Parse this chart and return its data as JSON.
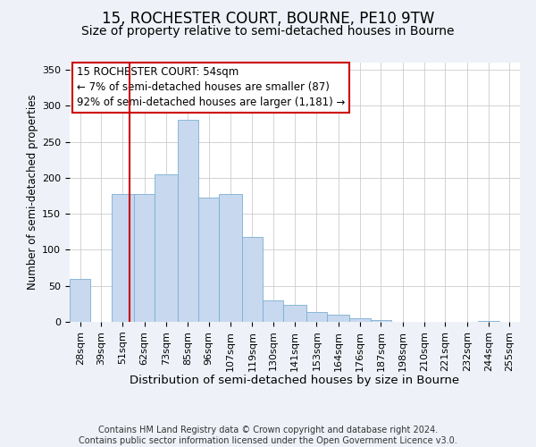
{
  "title": "15, ROCHESTER COURT, BOURNE, PE10 9TW",
  "subtitle": "Size of property relative to semi-detached houses in Bourne",
  "xlabel": "Distribution of semi-detached houses by size in Bourne",
  "ylabel": "Number of semi-detached properties",
  "footer_line1": "Contains HM Land Registry data © Crown copyright and database right 2024.",
  "footer_line2": "Contains public sector information licensed under the Open Government Licence v3.0.",
  "annotation_line1": "15 ROCHESTER COURT: 54sqm",
  "annotation_line2": "← 7% of semi-detached houses are smaller (87)",
  "annotation_line3": "92% of semi-detached houses are larger (1,181) →",
  "bar_color": "#c8d8ee",
  "bar_edge_color": "#7bafd4",
  "vline_x": 54,
  "vline_color": "#cc0000",
  "categories": [
    "28sqm",
    "39sqm",
    "51sqm",
    "62sqm",
    "73sqm",
    "85sqm",
    "96sqm",
    "107sqm",
    "119sqm",
    "130sqm",
    "141sqm",
    "153sqm",
    "164sqm",
    "176sqm",
    "187sqm",
    "198sqm",
    "210sqm",
    "221sqm",
    "232sqm",
    "244sqm",
    "255sqm"
  ],
  "bin_edges": [
    22.5,
    33.5,
    44.5,
    56.5,
    67.5,
    79.5,
    90.5,
    101.5,
    113.5,
    124.5,
    135.5,
    147.5,
    158.5,
    170.5,
    181.5,
    192.5,
    204.5,
    215.5,
    226.5,
    238.5,
    249.5,
    260.5
  ],
  "values": [
    60,
    0,
    177,
    177,
    205,
    280,
    172,
    177,
    118,
    30,
    23,
    14,
    10,
    5,
    2,
    0,
    0,
    0,
    0,
    1,
    0
  ],
  "ylim": [
    0,
    360
  ],
  "yticks": [
    0,
    50,
    100,
    150,
    200,
    250,
    300,
    350
  ],
  "background_color": "#eef2f8",
  "plot_background_color": "#ffffff",
  "grid_color": "#cccccc",
  "annotation_box_color": "#ffffff",
  "annotation_box_edge": "#cc0000",
  "title_fontsize": 12,
  "subtitle_fontsize": 10,
  "xlabel_fontsize": 9.5,
  "ylabel_fontsize": 8.5,
  "tick_fontsize": 8,
  "annotation_fontsize": 8.5,
  "footer_fontsize": 7
}
